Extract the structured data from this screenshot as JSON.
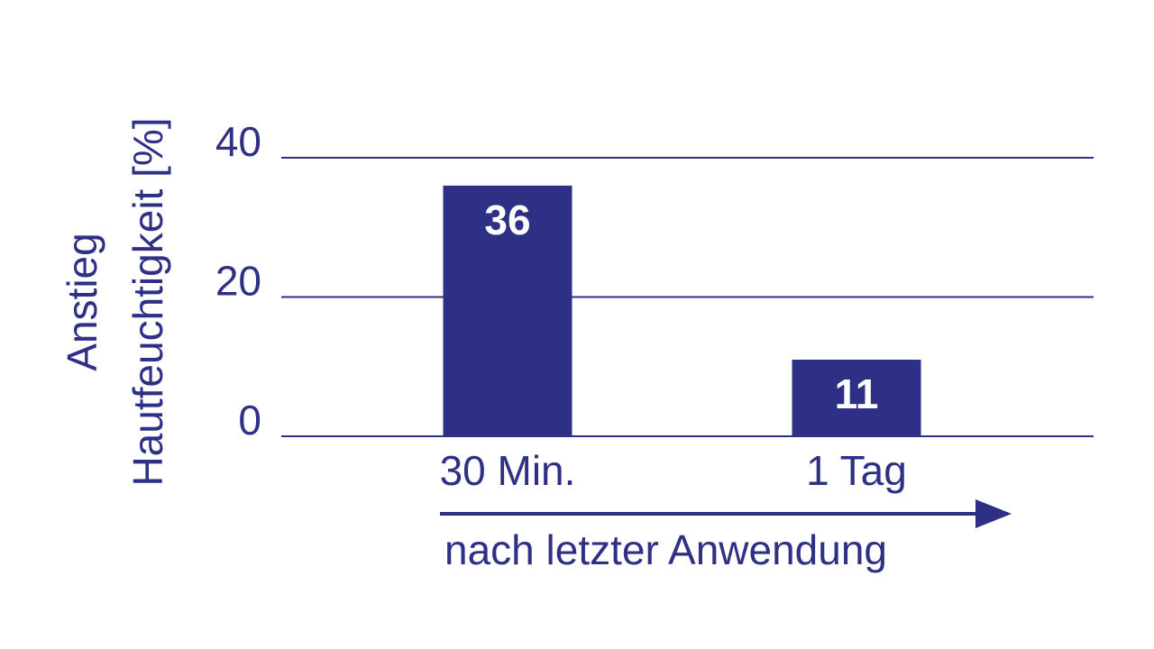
{
  "chart_data": {
    "type": "bar",
    "y_label": [
      "Anstieg",
      "Hautfeuchtigkeit [%]"
    ],
    "x_label": "nach letzter Anwendung",
    "categories": [
      "30 Min.",
      "1 Tag"
    ],
    "values": [
      36,
      11
    ],
    "color": "#2e3085",
    "ylim": [
      0,
      40
    ],
    "yticks": [
      0,
      20,
      40
    ],
    "grid": true
  }
}
